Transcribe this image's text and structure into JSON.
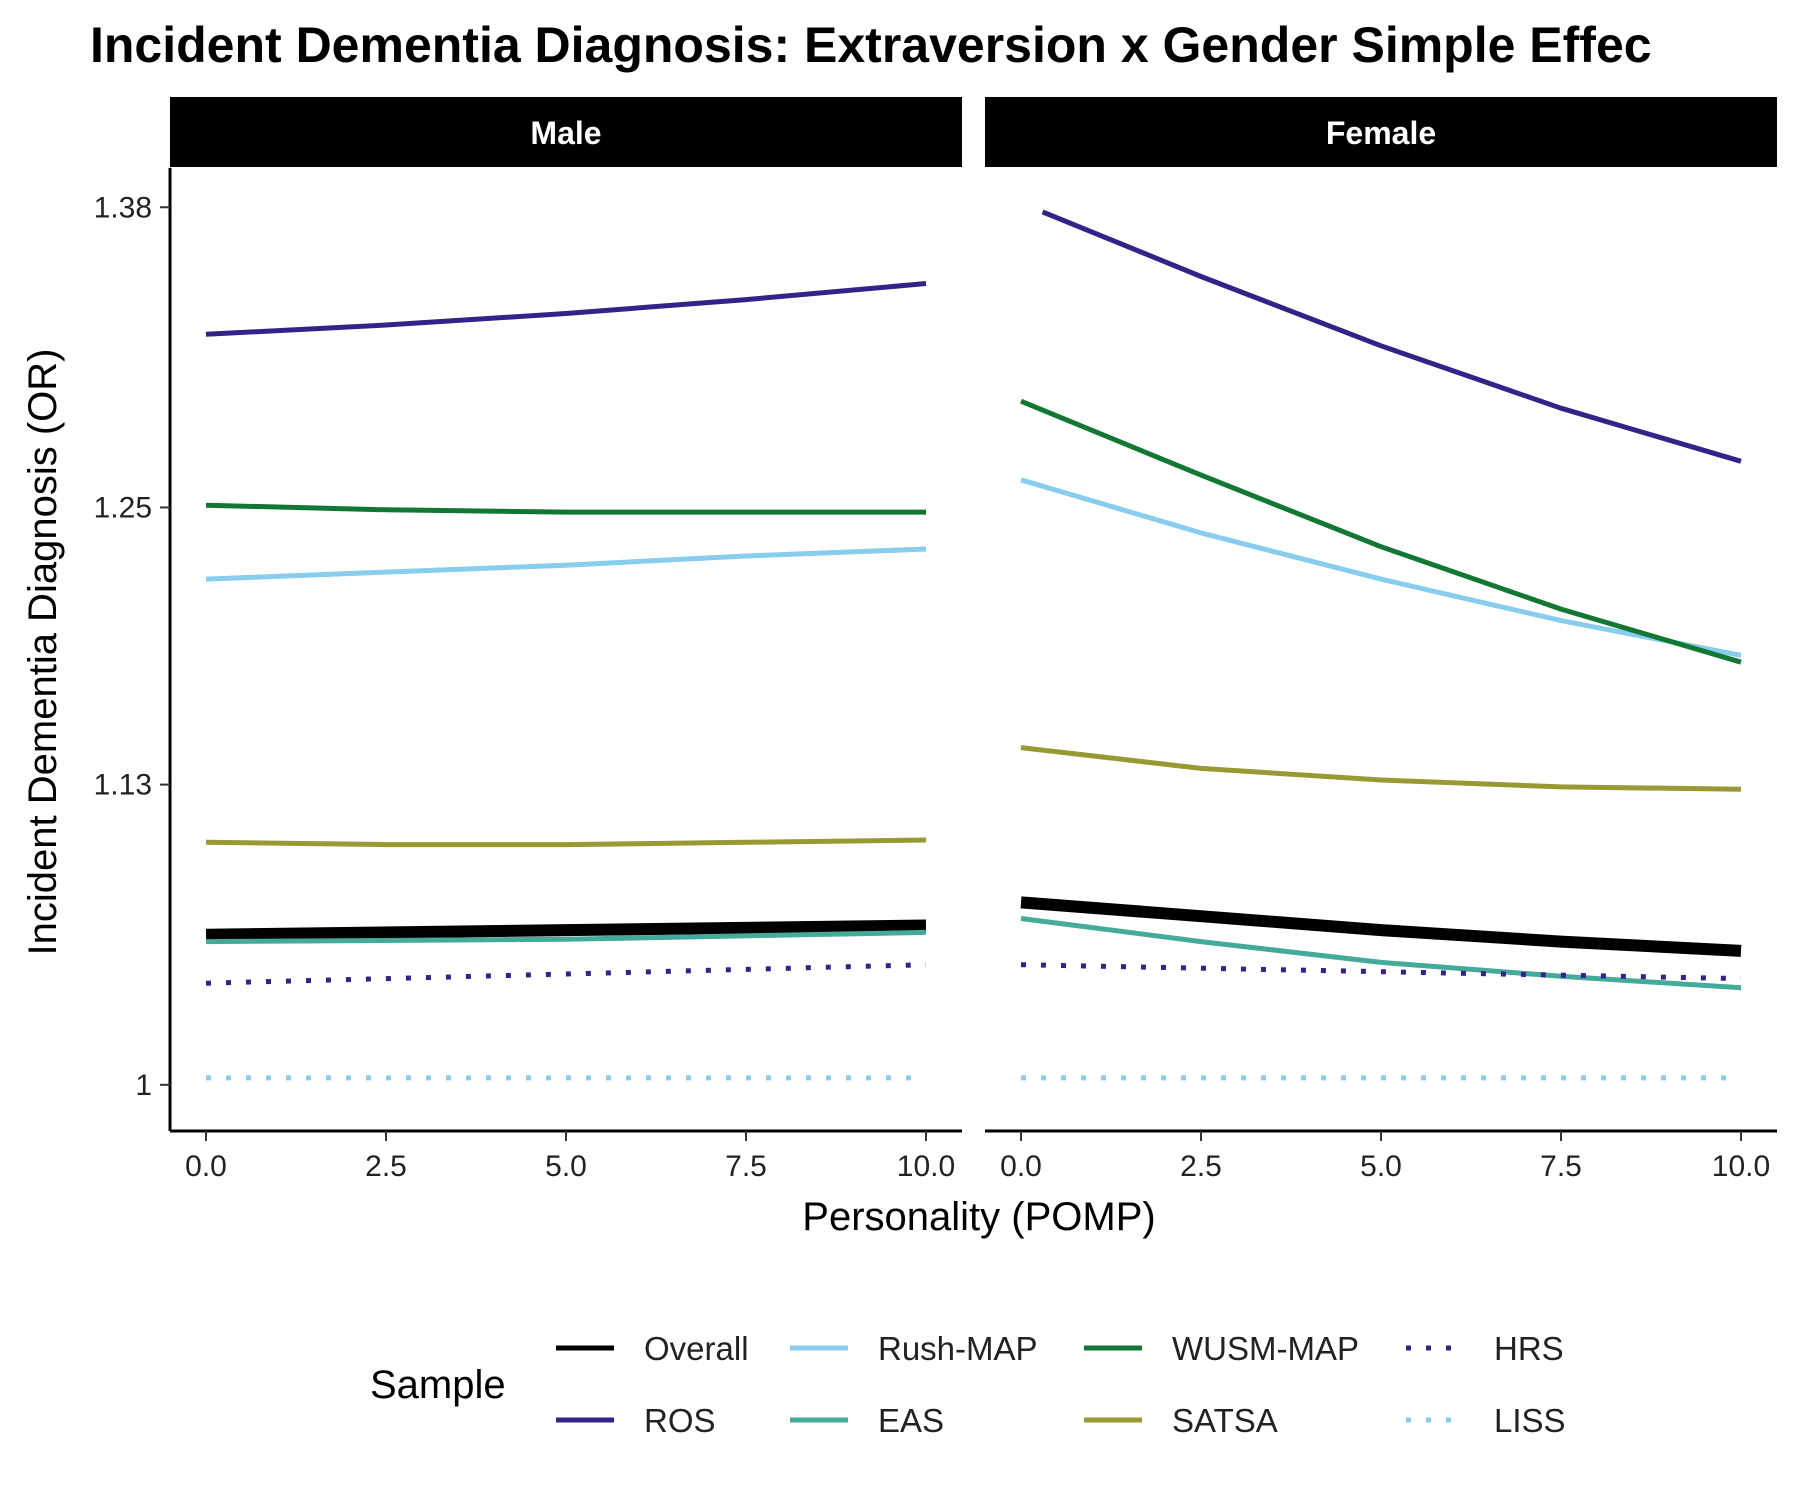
{
  "chart_data": {
    "type": "line",
    "title": "Incident Dementia Diagnosis: Extraversion x Gender Simple Effec",
    "xlabel": "Personality (POMP)",
    "ylabel": "Incident Dementia Diagnosis (OR)",
    "x_ticks": [
      0,
      2.5,
      5,
      7.5,
      10
    ],
    "x_tick_labels": [
      "0.0",
      "2.5",
      "5.0",
      "7.5",
      "10.0"
    ],
    "y_ticks": [
      1,
      1.13,
      1.25,
      1.38
    ],
    "y_tick_labels": [
      "1",
      "1.13",
      "1.25",
      "1.38"
    ],
    "xlim": [
      -0.5,
      10.5
    ],
    "ylim": [
      0.98,
      1.397
    ],
    "grid": false,
    "legend": {
      "title": "Sample",
      "position": "bottom"
    },
    "panels": [
      {
        "label": "Male"
      },
      {
        "label": "Female"
      }
    ],
    "series": [
      {
        "name": "Overall",
        "color": "#000000",
        "dash": "solid",
        "male": {
          "x": [
            0,
            5,
            10
          ],
          "y": [
            1.065,
            1.067,
            1.069
          ]
        },
        "female": {
          "x": [
            0,
            2.5,
            5,
            7.5,
            10
          ],
          "y": [
            1.079,
            1.073,
            1.067,
            1.062,
            1.058
          ]
        }
      },
      {
        "name": "ROS",
        "color": "#332288",
        "dash": "solid",
        "male": {
          "x": [
            0,
            2.5,
            5,
            7.5,
            10
          ],
          "y": [
            1.325,
            1.329,
            1.334,
            1.34,
            1.347
          ]
        },
        "female": {
          "x": [
            0.3,
            2.5,
            5,
            7.5,
            10
          ],
          "y": [
            1.378,
            1.35,
            1.32,
            1.293,
            1.27
          ]
        }
      },
      {
        "name": "Rush-MAP",
        "color": "#88CCEE",
        "dash": "solid",
        "male": {
          "x": [
            0,
            2.5,
            5,
            7.5,
            10
          ],
          "y": [
            1.219,
            1.222,
            1.225,
            1.229,
            1.232
          ]
        },
        "female": {
          "x": [
            0,
            2.5,
            5,
            7.5,
            10
          ],
          "y": [
            1.262,
            1.239,
            1.219,
            1.201,
            1.186
          ]
        }
      },
      {
        "name": "EAS",
        "color": "#44AA99",
        "dash": "solid",
        "male": {
          "x": [
            0,
            5,
            10
          ],
          "y": [
            1.062,
            1.063,
            1.066
          ]
        },
        "female": {
          "x": [
            0,
            2.5,
            5,
            7.5,
            10
          ],
          "y": [
            1.072,
            1.062,
            1.053,
            1.047,
            1.042
          ]
        }
      },
      {
        "name": "WUSM-MAP",
        "color": "#117733",
        "dash": "solid",
        "male": {
          "x": [
            0,
            2.5,
            5,
            7.5,
            10
          ],
          "y": [
            1.251,
            1.249,
            1.248,
            1.248,
            1.248
          ]
        },
        "female": {
          "x": [
            0,
            2.5,
            5,
            7.5,
            10
          ],
          "y": [
            1.296,
            1.264,
            1.233,
            1.206,
            1.183
          ]
        }
      },
      {
        "name": "SATSA",
        "color": "#999933",
        "dash": "solid",
        "male": {
          "x": [
            0,
            2.5,
            5,
            7.5,
            10
          ],
          "y": [
            1.105,
            1.104,
            1.104,
            1.105,
            1.106
          ]
        },
        "female": {
          "x": [
            0,
            2.5,
            5,
            7.5,
            10
          ],
          "y": [
            1.146,
            1.137,
            1.132,
            1.129,
            1.128
          ]
        }
      },
      {
        "name": "HRS",
        "color": "#332288",
        "dash": "dotted",
        "male": {
          "x": [
            0,
            5,
            10
          ],
          "y": [
            1.044,
            1.048,
            1.052
          ]
        },
        "female": {
          "x": [
            0,
            5,
            10
          ],
          "y": [
            1.052,
            1.049,
            1.046
          ]
        }
      },
      {
        "name": "LISS",
        "color": "#88CCEE",
        "dash": "dotted",
        "male": {
          "x": [
            0,
            10
          ],
          "y": [
            1.003,
            1.003
          ]
        },
        "female": {
          "x": [
            0,
            10
          ],
          "y": [
            1.003,
            1.003
          ]
        }
      }
    ]
  }
}
